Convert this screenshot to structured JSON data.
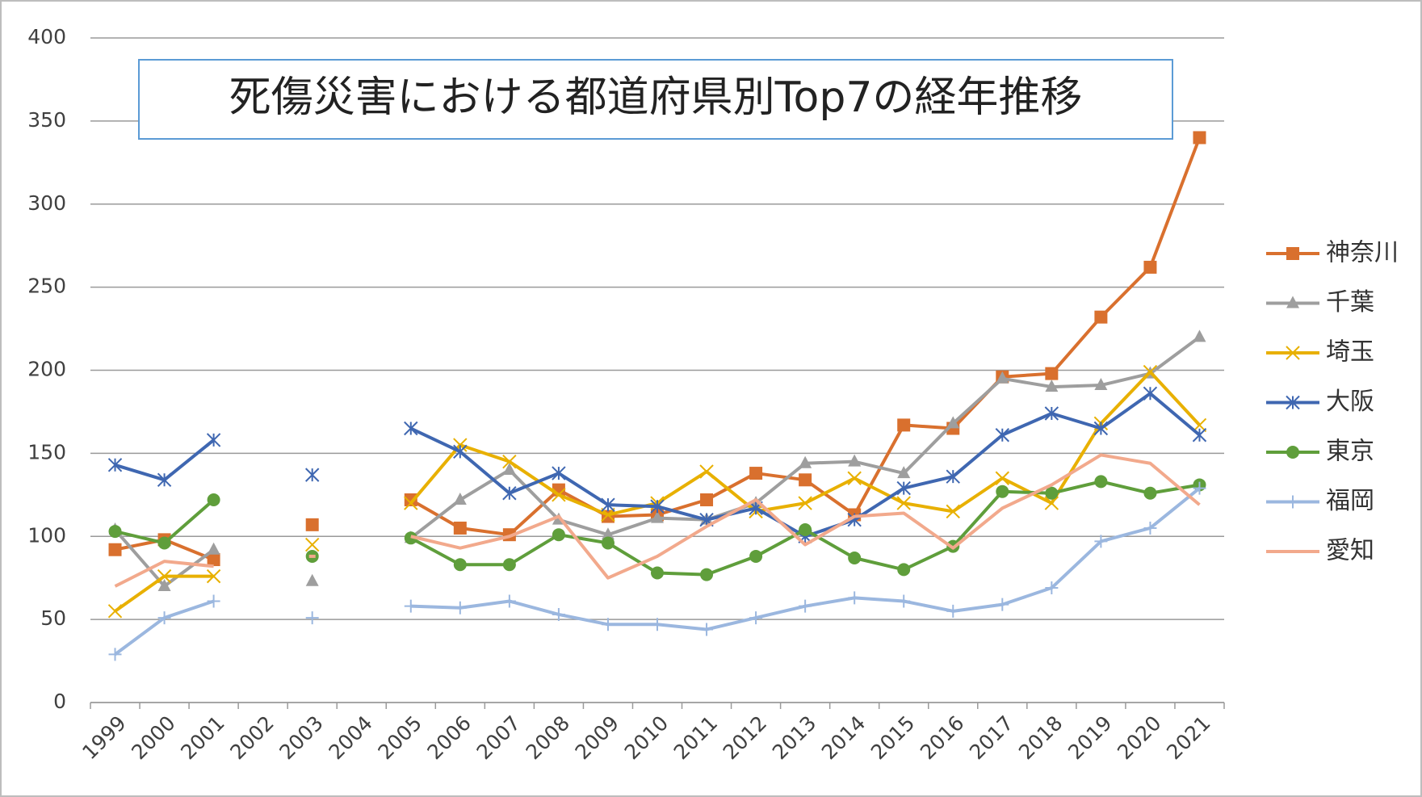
{
  "chart_data": {
    "type": "line",
    "title": "死傷災害における都道府県別Top7の経年推移",
    "categories": [
      "1999",
      "2000",
      "2001",
      "2002",
      "2003",
      "2004",
      "2005",
      "2006",
      "2007",
      "2008",
      "2009",
      "2010",
      "2011",
      "2012",
      "2013",
      "2014",
      "2015",
      "2016",
      "2017",
      "2018",
      "2019",
      "2020",
      "2021"
    ],
    "ylim": [
      0,
      400
    ],
    "yticks": [
      0,
      50,
      100,
      150,
      200,
      250,
      300,
      350,
      400
    ],
    "grid": true,
    "legend": "right",
    "series": [
      {
        "name": "神奈川",
        "color": "#d9702e",
        "marker": "square",
        "values": [
          92,
          98,
          86,
          null,
          107,
          null,
          122,
          105,
          101,
          128,
          112,
          113,
          122,
          138,
          134,
          113,
          167,
          165,
          196,
          198,
          232,
          262,
          340
        ]
      },
      {
        "name": "千葉",
        "color": "#9e9e9e",
        "marker": "triangle",
        "values": [
          104,
          70,
          92,
          null,
          73,
          null,
          99,
          122,
          140,
          110,
          101,
          111,
          110,
          120,
          144,
          145,
          138,
          168,
          195,
          190,
          191,
          198,
          220
        ]
      },
      {
        "name": "埼玉",
        "color": "#e8b000",
        "marker": "x",
        "values": [
          55,
          76,
          76,
          null,
          95,
          null,
          120,
          155,
          145,
          125,
          113,
          120,
          139,
          115,
          120,
          135,
          120,
          115,
          135,
          120,
          168,
          199,
          167
        ]
      },
      {
        "name": "大阪",
        "color": "#3f67b1",
        "marker": "star",
        "values": [
          143,
          134,
          158,
          null,
          137,
          null,
          165,
          151,
          126,
          138,
          119,
          118,
          110,
          117,
          100,
          110,
          129,
          136,
          161,
          174,
          165,
          186,
          161
        ]
      },
      {
        "name": "東京",
        "color": "#5f9e3b",
        "marker": "circle",
        "values": [
          103,
          96,
          122,
          null,
          88,
          null,
          99,
          83,
          83,
          101,
          96,
          78,
          77,
          88,
          104,
          87,
          80,
          94,
          127,
          126,
          133,
          126,
          131
        ]
      },
      {
        "name": "福岡",
        "color": "#9bb7df",
        "marker": "plus",
        "values": [
          29,
          51,
          61,
          null,
          51,
          null,
          58,
          57,
          61,
          53,
          47,
          47,
          44,
          51,
          58,
          63,
          61,
          55,
          59,
          69,
          97,
          105,
          129
        ]
      },
      {
        "name": "愛知",
        "color": "#f2a98c",
        "marker": "none",
        "values": [
          70,
          85,
          82,
          null,
          88,
          null,
          100,
          93,
          100,
          112,
          75,
          88,
          106,
          122,
          95,
          112,
          114,
          93,
          117,
          131,
          149,
          144,
          119
        ]
      }
    ]
  }
}
